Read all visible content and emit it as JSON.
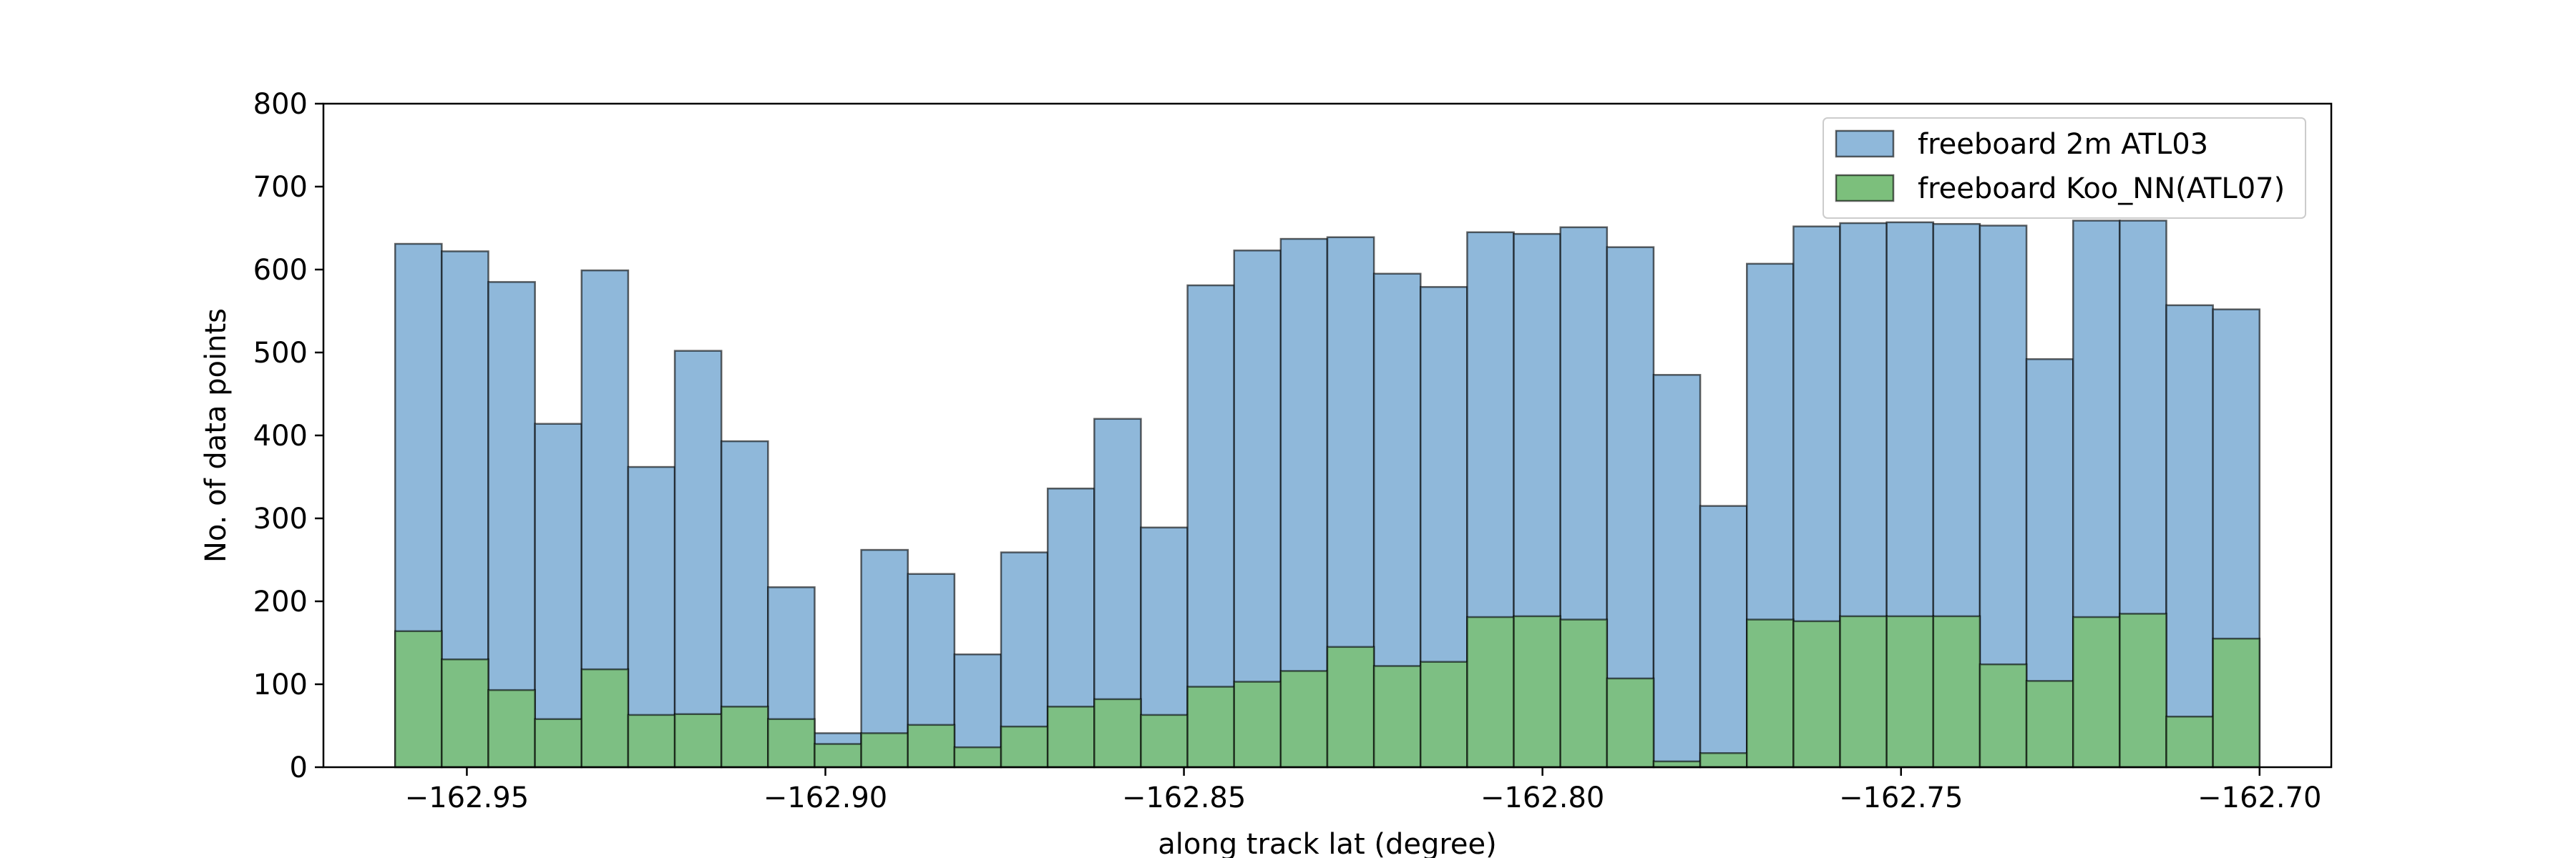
{
  "chart_data": {
    "type": "histogram",
    "xlabel": "along track lat (degree)",
    "ylabel": "No. of data points",
    "xlim": [
      -162.97,
      -162.69
    ],
    "ylim": [
      0,
      800
    ],
    "xticks": [
      -162.95,
      -162.9,
      -162.85,
      -162.8,
      -162.75,
      -162.7
    ],
    "xtick_labels": [
      "−162.95",
      "−162.90",
      "−162.85",
      "−162.80",
      "−162.75",
      "−162.70"
    ],
    "yticks": [
      0,
      100,
      200,
      300,
      400,
      500,
      600,
      700,
      800
    ],
    "ytick_labels": [
      "0",
      "100",
      "200",
      "300",
      "400",
      "500",
      "600",
      "700",
      "800"
    ],
    "grid": false,
    "legend_position": "top-right",
    "series": [
      {
        "name": "freeboard 2m ATL03",
        "color": "#8fb8da",
        "bin_start": -162.96,
        "bin_end": -162.7,
        "values": [
          631,
          622,
          585,
          414,
          599,
          362,
          502,
          393,
          217,
          41,
          262,
          233,
          136,
          259,
          336,
          420,
          289,
          581,
          623,
          637,
          639,
          595,
          579,
          645,
          643,
          651,
          627,
          473,
          315,
          607,
          652,
          656,
          657,
          655,
          653,
          492,
          659,
          659,
          557,
          552
        ]
      },
      {
        "name": "freeboard Koo_NN(ATL07)",
        "color": "#7cbf7c",
        "bin_start": -162.96,
        "bin_end": -162.7,
        "values": [
          164,
          130,
          93,
          58,
          118,
          63,
          64,
          73,
          58,
          28,
          41,
          51,
          24,
          49,
          73,
          82,
          63,
          97,
          103,
          116,
          145,
          122,
          127,
          181,
          182,
          178,
          107,
          7,
          17,
          178,
          176,
          182,
          182,
          182,
          124,
          104,
          181,
          185,
          61,
          155
        ]
      }
    ]
  }
}
